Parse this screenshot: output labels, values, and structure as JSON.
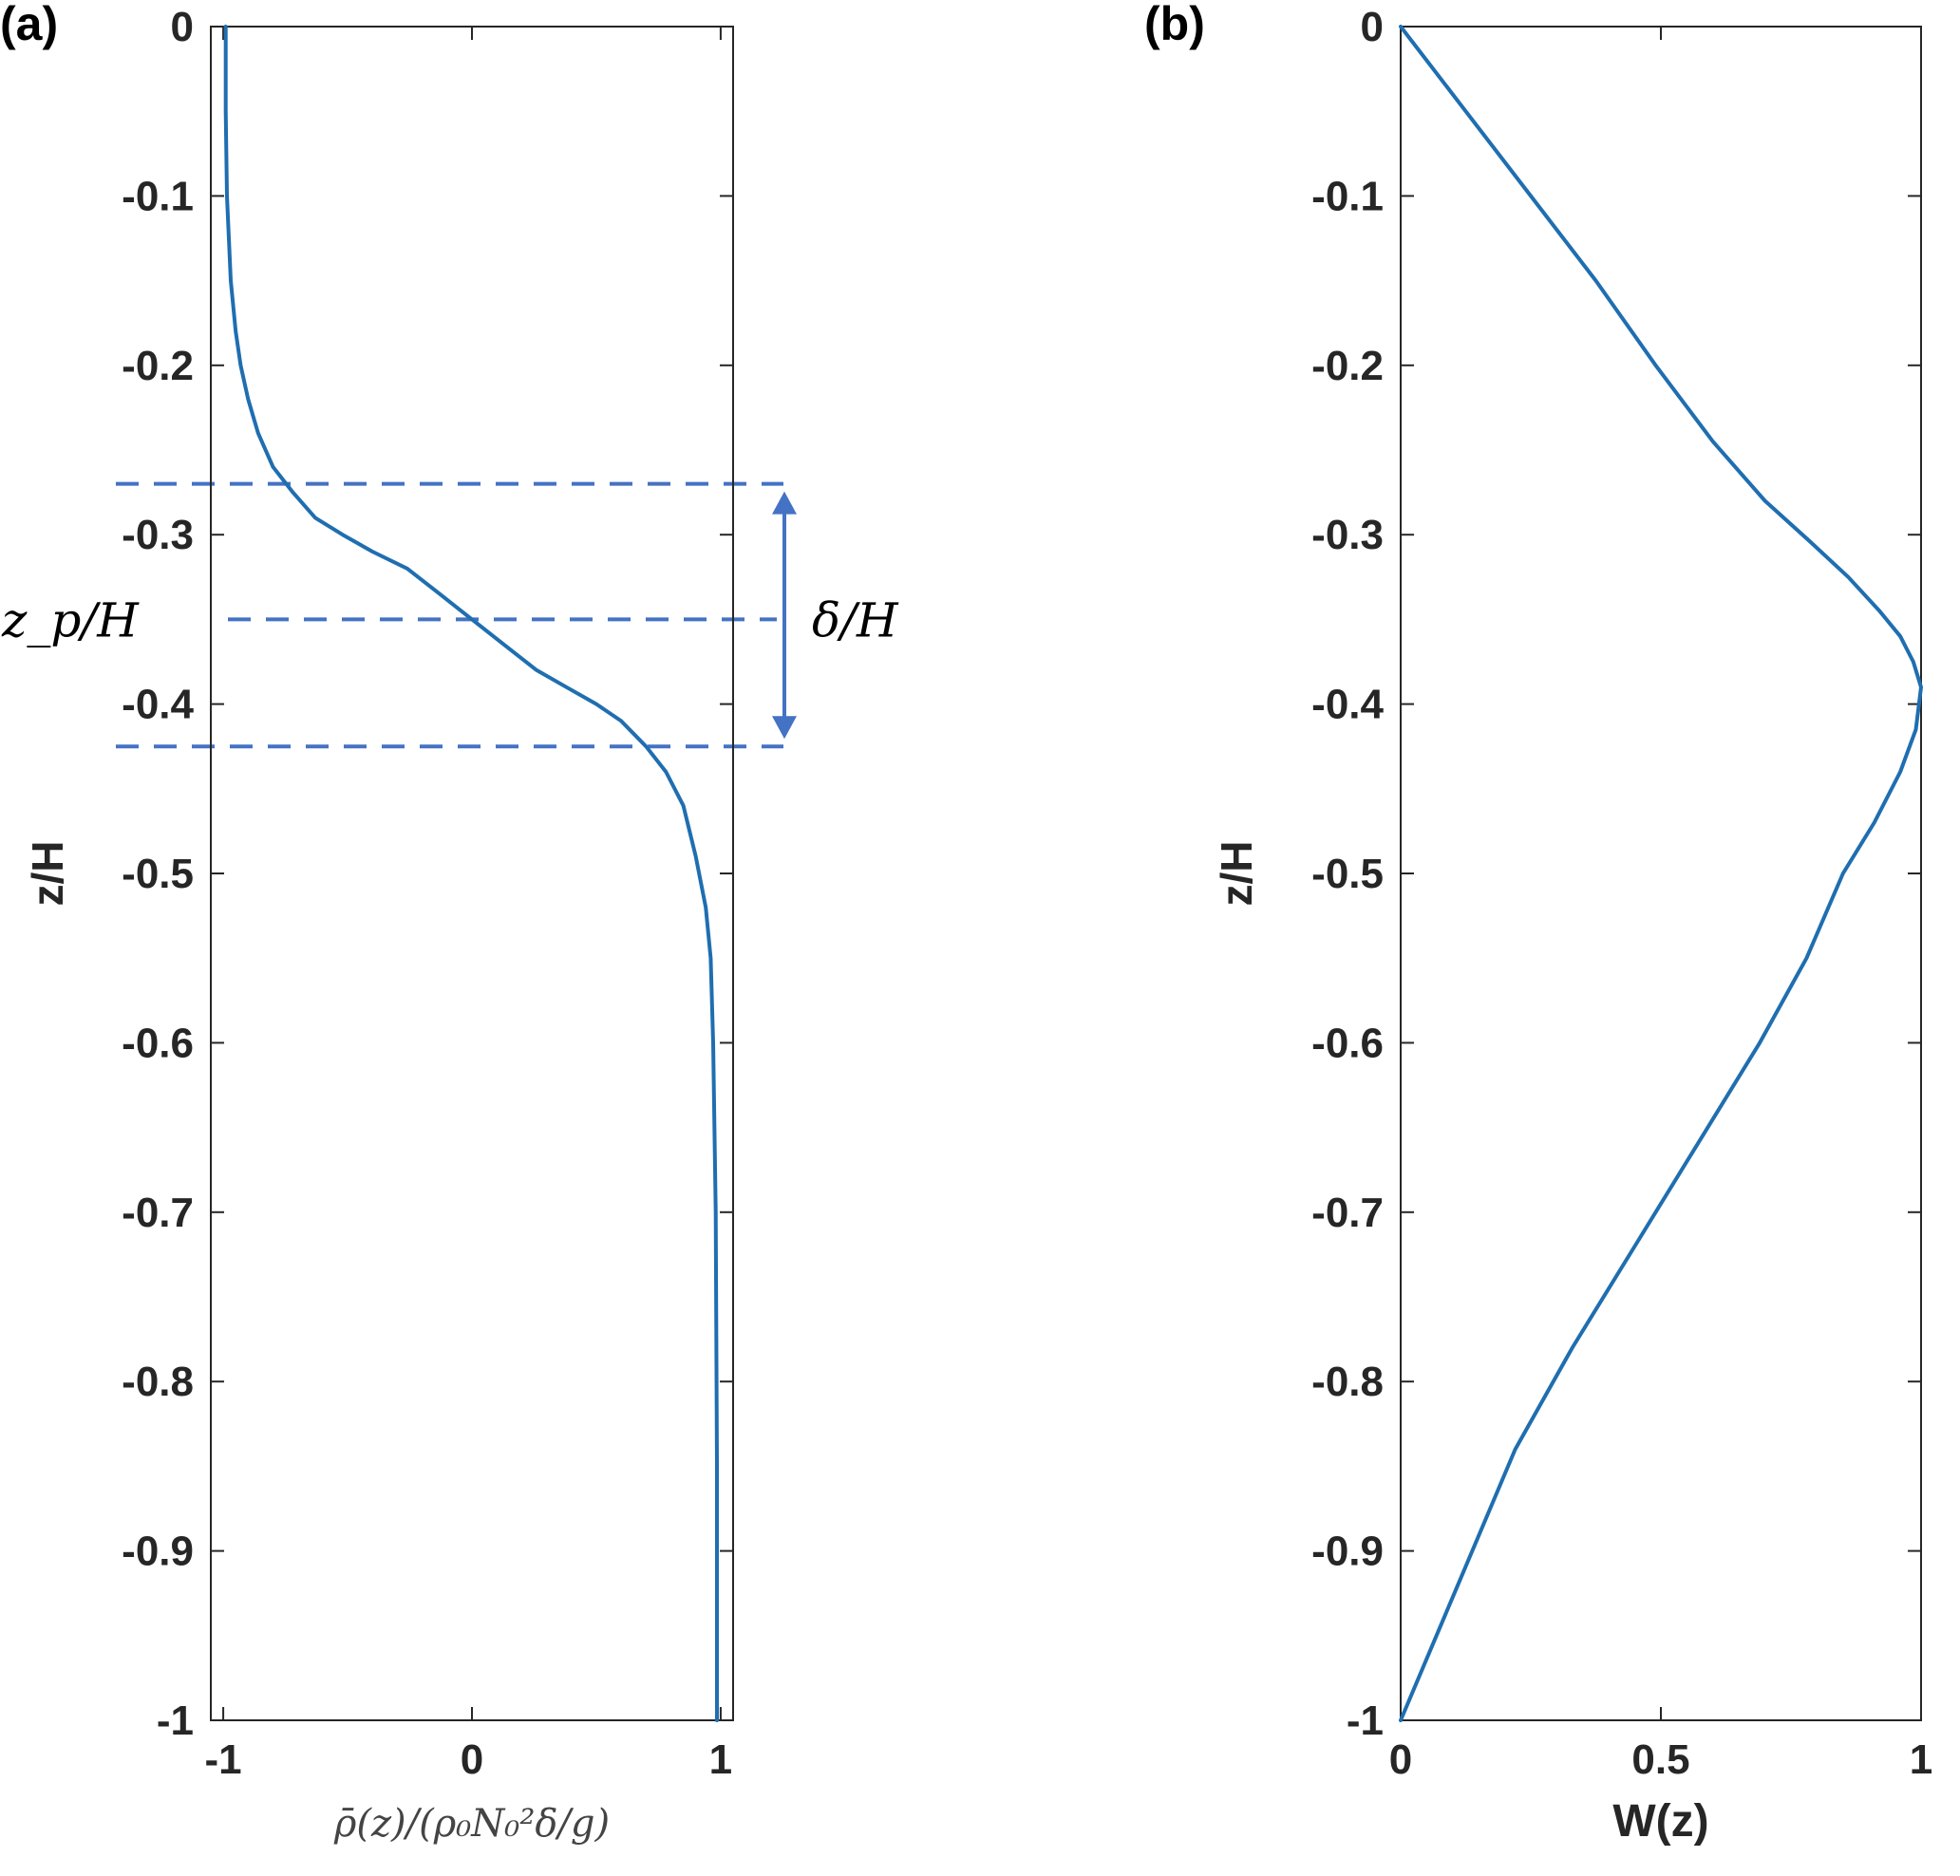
{
  "figure": {
    "panel_a_label": "(a)",
    "panel_b_label": "(b)"
  },
  "chart_data": [
    {
      "panel": "(a)",
      "type": "line",
      "title": "",
      "xlabel": "ρ̄(z)/(ρ₀N₀²δ/g)",
      "ylabel": "z/H",
      "xlim": [
        -1.05,
        1.05
      ],
      "ylim": [
        -1,
        0
      ],
      "xticks": [
        -1,
        0,
        1
      ],
      "xtick_labels": [
        "-1",
        "0",
        "1"
      ],
      "yticks": [
        0,
        -0.1,
        -0.2,
        -0.3,
        -0.4,
        -0.5,
        -0.6,
        -0.7,
        -0.8,
        -0.9,
        -1
      ],
      "ytick_labels": [
        "0",
        "-0.1",
        "-0.2",
        "-0.3",
        "-0.4",
        "-0.5",
        "-0.6",
        "-0.7",
        "-0.8",
        "-0.9",
        "-1"
      ],
      "grid": false,
      "series": [
        {
          "color": "#1f6eb0",
          "x": [
            -0.99,
            -0.99,
            -0.985,
            -0.97,
            -0.95,
            -0.93,
            -0.9,
            -0.86,
            -0.8,
            -0.72,
            -0.63,
            -0.52,
            -0.4,
            -0.26,
            -0.13,
            0.0,
            0.13,
            0.26,
            0.38,
            0.5,
            0.6,
            0.7,
            0.78,
            0.85,
            0.9,
            0.94,
            0.96,
            0.97,
            0.98,
            0.985,
            0.985
          ],
          "y": [
            0,
            -0.05,
            -0.1,
            -0.15,
            -0.18,
            -0.2,
            -0.22,
            -0.24,
            -0.26,
            -0.275,
            -0.29,
            -0.3,
            -0.31,
            -0.32,
            -0.335,
            -0.35,
            -0.365,
            -0.38,
            -0.39,
            -0.4,
            -0.41,
            -0.425,
            -0.44,
            -0.46,
            -0.49,
            -0.52,
            -0.55,
            -0.6,
            -0.7,
            -0.85,
            -1.0
          ]
        }
      ],
      "annotations": {
        "zp_label": "z_p/H",
        "delta_label": "δ/H",
        "line_color": "#4472c4",
        "dashed_levels": [
          -0.27,
          -0.35,
          -0.425
        ]
      }
    },
    {
      "panel": "(b)",
      "type": "line",
      "title": "",
      "xlabel": "W(z)",
      "ylabel": "z/H",
      "xlim": [
        0,
        1
      ],
      "ylim": [
        -1,
        0
      ],
      "xticks": [
        0,
        0.5,
        1
      ],
      "xtick_labels": [
        "0",
        "0.5",
        "1"
      ],
      "yticks": [
        0,
        -0.1,
        -0.2,
        -0.3,
        -0.4,
        -0.5,
        -0.6,
        -0.7,
        -0.8,
        -0.9,
        -1
      ],
      "ytick_labels": [
        "0",
        "-0.1",
        "-0.2",
        "-0.3",
        "-0.4",
        "-0.5",
        "-0.6",
        "-0.7",
        "-0.8",
        "-0.9",
        "-1"
      ],
      "grid": false,
      "series": [
        {
          "color": "#1f6eb0",
          "x": [
            0,
            0.125,
            0.25,
            0.375,
            0.49,
            0.6,
            0.7,
            0.79,
            0.86,
            0.92,
            0.96,
            0.985,
            1.0,
            0.99,
            0.96,
            0.91,
            0.85,
            0.78,
            0.69,
            0.57,
            0.45,
            0.33,
            0.22,
            0.11,
            0.0
          ],
          "y": [
            0,
            -0.05,
            -0.1,
            -0.15,
            -0.2,
            -0.245,
            -0.28,
            -0.305,
            -0.325,
            -0.345,
            -0.36,
            -0.375,
            -0.39,
            -0.415,
            -0.44,
            -0.47,
            -0.5,
            -0.55,
            -0.6,
            -0.66,
            -0.72,
            -0.78,
            -0.84,
            -0.92,
            -1.0
          ]
        }
      ]
    }
  ]
}
